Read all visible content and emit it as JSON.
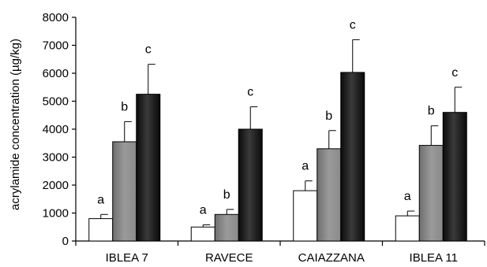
{
  "chart_data": {
    "type": "bar",
    "ylabel": "acrylamide concentration (µg/kg)",
    "xlabel": "",
    "ylim": [
      0,
      8000
    ],
    "yticks": [
      "0",
      "1000",
      "2000",
      "3000",
      "4000",
      "5000",
      "6000",
      "7000",
      "8000"
    ],
    "grid": false,
    "legend": "none",
    "categories": [
      "IBLEA 7",
      "RAVECE",
      "CAIAZZANA",
      "IBLEA 11"
    ],
    "series": [
      {
        "values": [
          800,
          500,
          1800,
          900
        ],
        "errors": [
          150,
          80,
          350,
          170
        ],
        "letters": [
          "a",
          "a",
          "a",
          "a"
        ],
        "style": "white"
      },
      {
        "values": [
          3550,
          950,
          3300,
          3420
        ],
        "errors": [
          720,
          180,
          650,
          700
        ],
        "letters": [
          "b",
          "b",
          "b",
          "b"
        ],
        "style": "gray"
      },
      {
        "values": [
          5250,
          4000,
          6030,
          4600
        ],
        "errors": [
          1070,
          800,
          1170,
          900
        ],
        "letters": [
          "c",
          "c",
          "c",
          "c"
        ],
        "style": "black"
      }
    ]
  }
}
